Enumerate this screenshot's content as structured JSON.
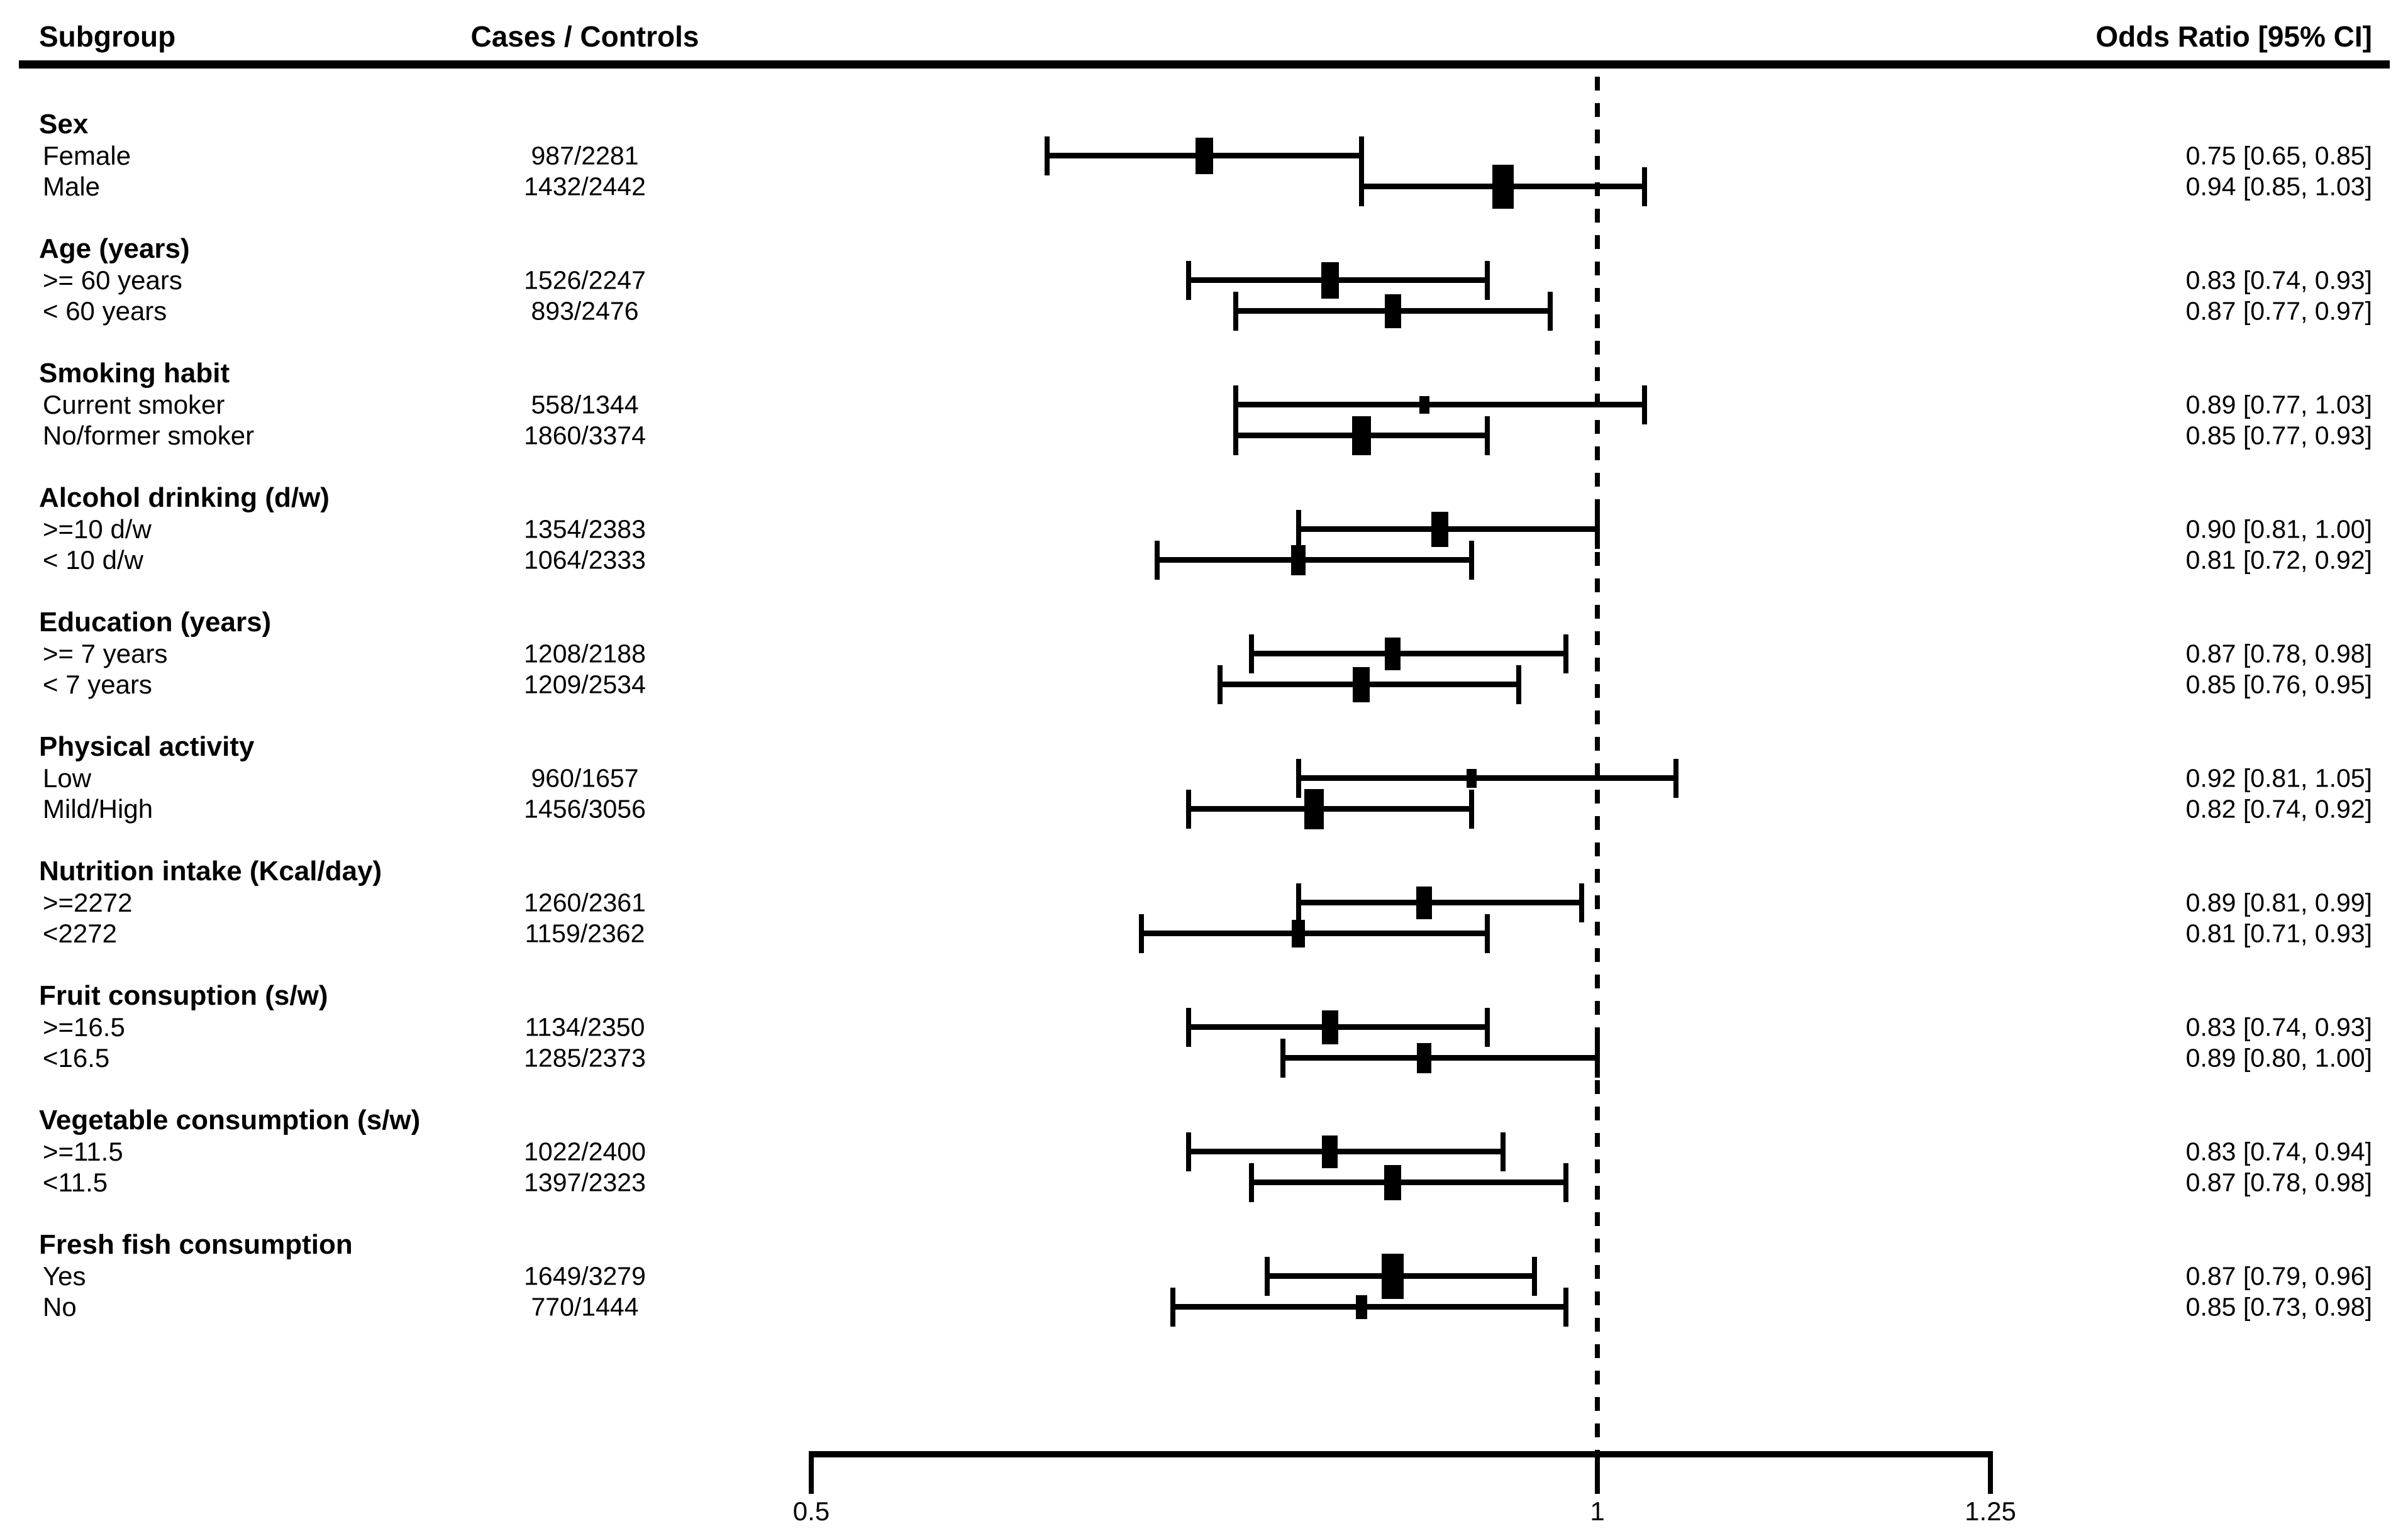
{
  "header": {
    "subgroup": "Subgroup",
    "cases_controls": "Cases / Controls",
    "odds_ratio": "Odds Ratio [95% CI]"
  },
  "colors": {
    "ink": "#000000",
    "background": "#ffffff"
  },
  "chart_data": {
    "type": "forest",
    "scale": "linear",
    "xlim": [
      0.5,
      1.25
    ],
    "axis_ticks": [
      {
        "value": 0.5,
        "label": "0.5"
      },
      {
        "value": 1.0,
        "label": "1"
      },
      {
        "value": 1.25,
        "label": "1.25"
      }
    ],
    "reference_line_value": 1.0,
    "groups": [
      {
        "label": "Sex",
        "rows": [
          {
            "label": "Female",
            "cases_controls": "987/2281",
            "or": 0.75,
            "ci_low": 0.65,
            "ci_high": 0.85,
            "or_text": "0.75 [0.65, 0.85]",
            "marker_size": 58
          },
          {
            "label": "Male",
            "cases_controls": "1432/2442",
            "or": 0.94,
            "ci_low": 0.85,
            "ci_high": 1.03,
            "or_text": "0.94 [0.85, 1.03]",
            "marker_size": 70
          }
        ]
      },
      {
        "label": "Age (years)",
        "rows": [
          {
            "label": ">= 60 years",
            "cases_controls": "1526/2247",
            "or": 0.83,
            "ci_low": 0.74,
            "ci_high": 0.93,
            "or_text": "0.83 [0.74, 0.93]",
            "marker_size": 58
          },
          {
            "label": "< 60 years",
            "cases_controls": "893/2476",
            "or": 0.87,
            "ci_low": 0.77,
            "ci_high": 0.97,
            "or_text": "0.87 [0.77, 0.97]",
            "marker_size": 54
          }
        ]
      },
      {
        "label": "Smoking habit",
        "rows": [
          {
            "label": "Current smoker",
            "cases_controls": "558/1344",
            "or": 0.89,
            "ci_low": 0.77,
            "ci_high": 1.03,
            "or_text": "0.89 [0.77, 1.03]",
            "marker_size": 28
          },
          {
            "label": "No/former smoker",
            "cases_controls": "1860/3374",
            "or": 0.85,
            "ci_low": 0.77,
            "ci_high": 0.93,
            "or_text": "0.85 [0.77, 0.93]",
            "marker_size": 62
          }
        ]
      },
      {
        "label": "Alcohol drinking (d/w)",
        "rows": [
          {
            "label": ">=10 d/w",
            "cases_controls": "1354/2383",
            "or": 0.9,
            "ci_low": 0.81,
            "ci_high": 1.0,
            "or_text": "0.90 [0.81, 1.00]",
            "marker_size": 56
          },
          {
            "label": "< 10 d/w",
            "cases_controls": "1064/2333",
            "or": 0.81,
            "ci_low": 0.72,
            "ci_high": 0.92,
            "or_text": "0.81 [0.72, 0.92]",
            "marker_size": 48
          }
        ]
      },
      {
        "label": "Education (years)",
        "rows": [
          {
            "label": ">= 7 years",
            "cases_controls": "1208/2188",
            "or": 0.87,
            "ci_low": 0.78,
            "ci_high": 0.98,
            "or_text": "0.87 [0.78, 0.98]",
            "marker_size": 52
          },
          {
            "label": "< 7 years",
            "cases_controls": "1209/2534",
            "or": 0.85,
            "ci_low": 0.76,
            "ci_high": 0.95,
            "or_text": "0.85 [0.76, 0.95]",
            "marker_size": 56
          }
        ]
      },
      {
        "label": "Physical activity",
        "rows": [
          {
            "label": "Low",
            "cases_controls": "960/1657",
            "or": 0.92,
            "ci_low": 0.81,
            "ci_high": 1.05,
            "or_text": "0.92 [0.81, 1.05]",
            "marker_size": 30
          },
          {
            "label": "Mild/High",
            "cases_controls": "1456/3056",
            "or": 0.82,
            "ci_low": 0.74,
            "ci_high": 0.92,
            "or_text": "0.82 [0.74, 0.92]",
            "marker_size": 64
          }
        ]
      },
      {
        "label": "Nutrition intake (Kcal/day)",
        "rows": [
          {
            "label": ">=2272",
            "cases_controls": "1260/2361",
            "or": 0.89,
            "ci_low": 0.81,
            "ci_high": 0.99,
            "or_text": "0.89 [0.81, 0.99]",
            "marker_size": 52
          },
          {
            "label": "<2272",
            "cases_controls": "1159/2362",
            "or": 0.81,
            "ci_low": 0.71,
            "ci_high": 0.93,
            "or_text": "0.81 [0.71, 0.93]",
            "marker_size": 44
          }
        ]
      },
      {
        "label": "Fruit consuption (s/w)",
        "rows": [
          {
            "label": ">=16.5",
            "cases_controls": "1134/2350",
            "or": 0.83,
            "ci_low": 0.74,
            "ci_high": 0.93,
            "or_text": "0.83 [0.74, 0.93]",
            "marker_size": 54
          },
          {
            "label": "<16.5",
            "cases_controls": "1285/2373",
            "or": 0.89,
            "ci_low": 0.8,
            "ci_high": 1.0,
            "or_text": "0.89 [0.80, 1.00]",
            "marker_size": 48
          }
        ]
      },
      {
        "label": "Vegetable consumption (s/w)",
        "rows": [
          {
            "label": ">=11.5",
            "cases_controls": "1022/2400",
            "or": 0.83,
            "ci_low": 0.74,
            "ci_high": 0.94,
            "or_text": "0.83 [0.74, 0.94]",
            "marker_size": 52
          },
          {
            "label": "<11.5",
            "cases_controls": "1397/2323",
            "or": 0.87,
            "ci_low": 0.78,
            "ci_high": 0.98,
            "or_text": "0.87 [0.78, 0.98]",
            "marker_size": 56
          }
        ]
      },
      {
        "label": "Fresh fish consumption",
        "rows": [
          {
            "label": "Yes",
            "cases_controls": "1649/3279",
            "or": 0.87,
            "ci_low": 0.79,
            "ci_high": 0.96,
            "or_text": "0.87 [0.79, 0.96]",
            "marker_size": 72
          },
          {
            "label": "No",
            "cases_controls": "770/1444",
            "or": 0.85,
            "ci_low": 0.73,
            "ci_high": 0.98,
            "or_text": "0.85 [0.73, 0.98]",
            "marker_size": 38
          }
        ]
      }
    ]
  }
}
